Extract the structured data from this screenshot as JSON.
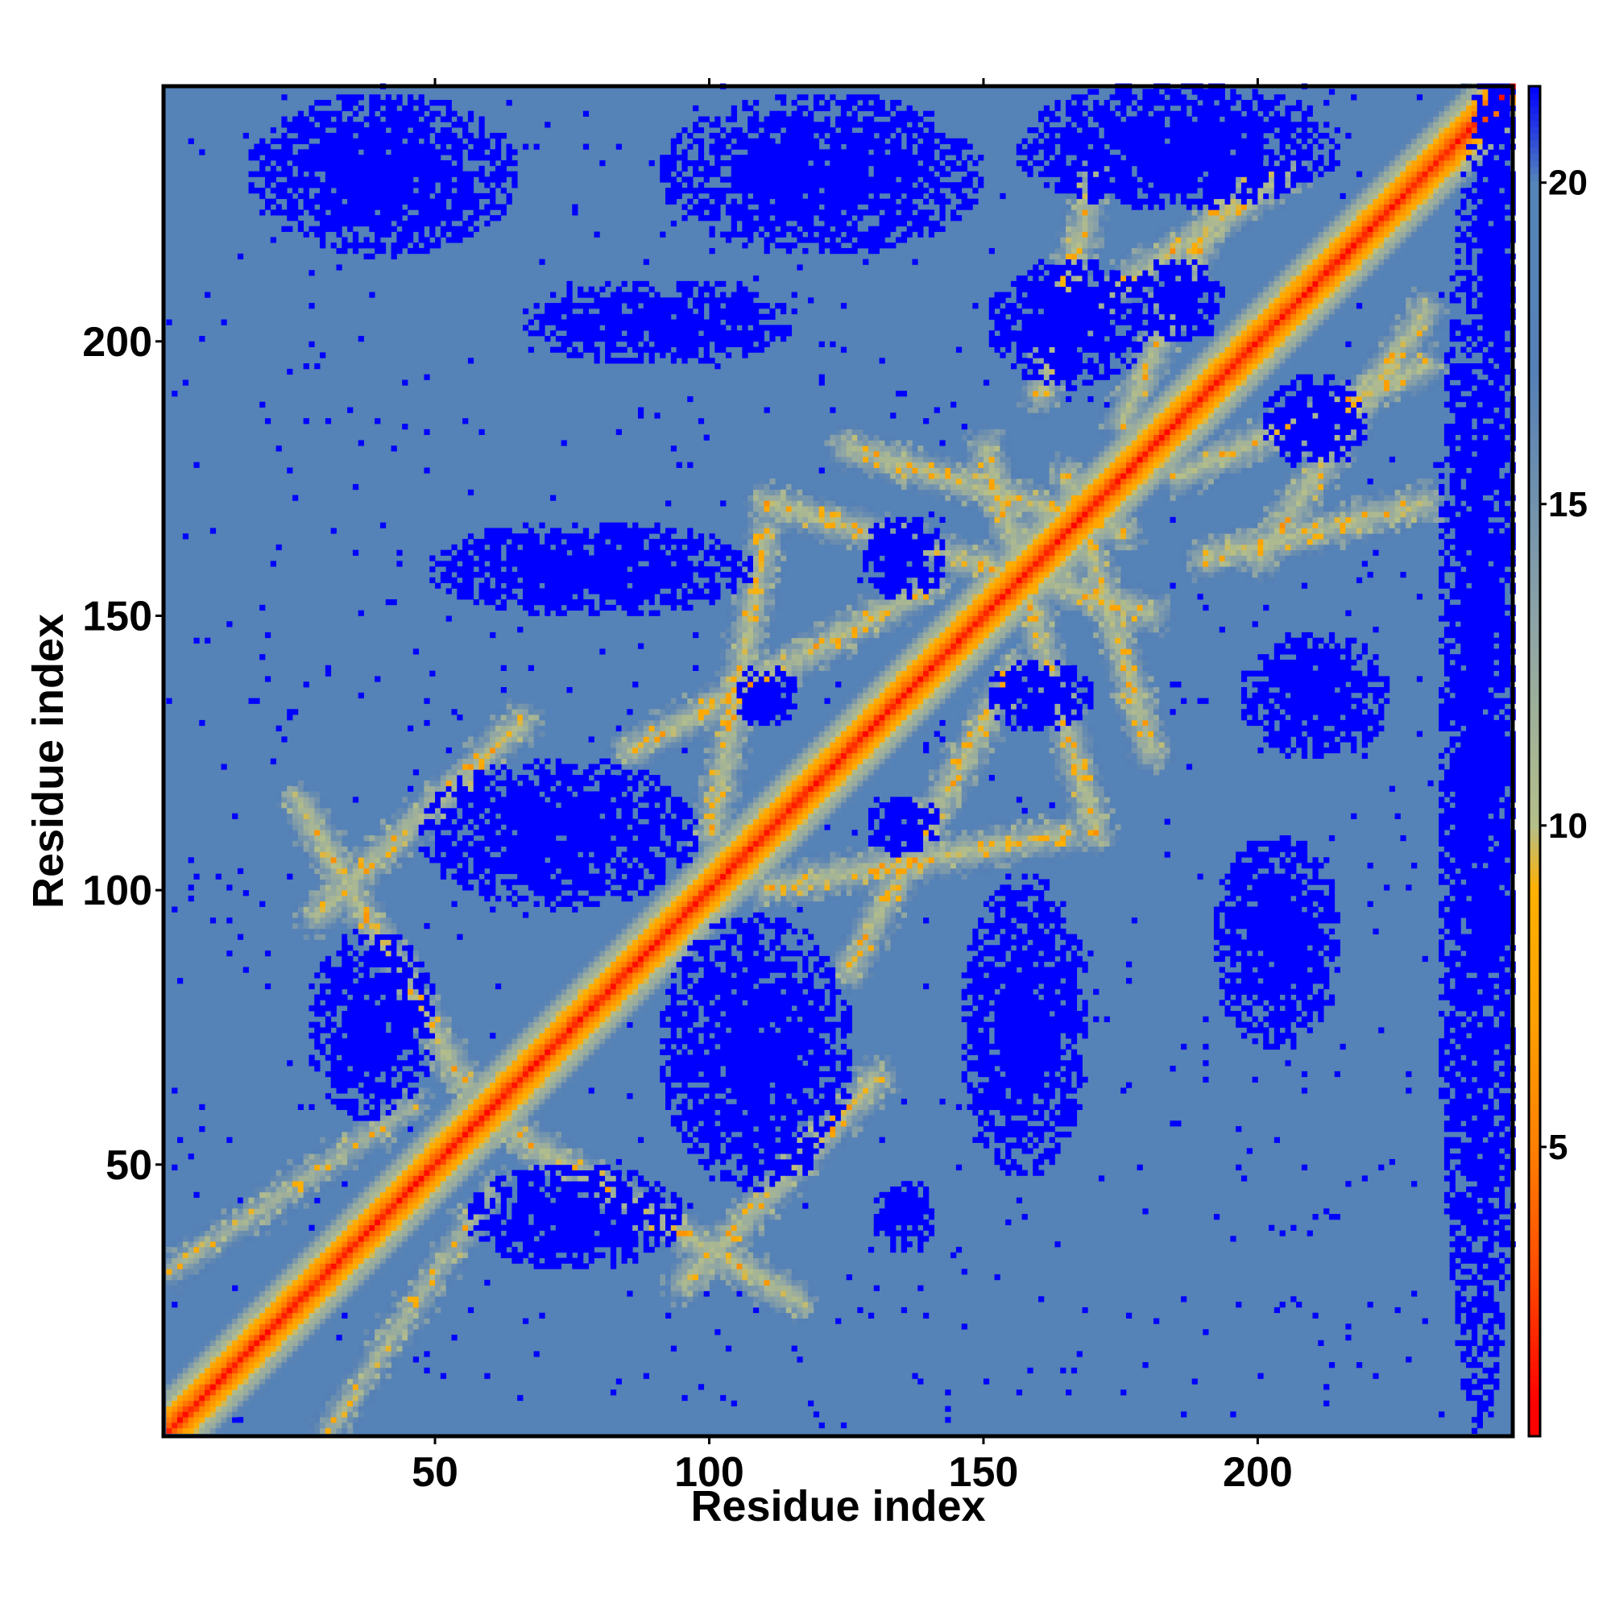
{
  "chart_data": {
    "type": "heatmap",
    "title": "",
    "xlabel": "Residue index",
    "ylabel": "Residue index",
    "n_residues": 246,
    "xlim": [
      1,
      246
    ],
    "ylim": [
      1,
      246
    ],
    "x_ticks": [
      50,
      100,
      150,
      200
    ],
    "y_ticks": [
      50,
      100,
      150,
      200
    ],
    "colorbar": {
      "range": [
        0.5,
        21.5
      ],
      "ticks": [
        5,
        10,
        15,
        20
      ],
      "colors": [
        {
          "value": 1,
          "color": "#ff0000"
        },
        {
          "value": 3,
          "color": "#ff4a00"
        },
        {
          "value": 5,
          "color": "#ff8000"
        },
        {
          "value": 7,
          "color": "#ffa000"
        },
        {
          "value": 9,
          "color": "#ffb000"
        },
        {
          "value": 10,
          "color": "#b5bf8a"
        },
        {
          "value": 13,
          "color": "#8fa5a5"
        },
        {
          "value": 17,
          "color": "#5580b6"
        },
        {
          "value": 20,
          "color": "#5585b8"
        },
        {
          "value": 21.5,
          "color": "#0000ff"
        }
      ]
    },
    "structure": {
      "diagonal": "contact distance near 0 along i = j, rising to ~10 within 4 residues",
      "background_value": 18,
      "secondary_bands": [
        {
          "from": [
            1,
            30
          ],
          "to": [
            45,
            60
          ],
          "value": 10
        },
        {
          "from": [
            28,
            95
          ],
          "to": [
            65,
            130
          ],
          "value": 9
        },
        {
          "from": [
            64,
            55
          ],
          "to": [
            115,
            25
          ],
          "value": 9
        },
        {
          "from": [
            85,
            125
          ],
          "to": [
            140,
            155
          ],
          "value": 9
        },
        {
          "from": [
            110,
            100
          ],
          "to": [
            165,
            110
          ],
          "value": 9
        },
        {
          "from": [
            110,
            170
          ],
          "to": [
            180,
            150
          ],
          "value": 9
        },
        {
          "from": [
            125,
            180
          ],
          "to": [
            175,
            165
          ],
          "value": 9
        },
        {
          "from": [
            160,
            200
          ],
          "to": [
            205,
            230
          ],
          "value": 9
        },
        {
          "from": [
            185,
            175
          ],
          "to": [
            230,
            195
          ],
          "value": 9
        },
        {
          "from": [
            190,
            160
          ],
          "to": [
            230,
            170
          ],
          "value": 9
        }
      ],
      "far_regions": [
        {
          "center": [
            90,
            203
          ],
          "size": [
            25,
            8
          ]
        },
        {
          "center": [
            165,
            203
          ],
          "size": [
            15,
            12
          ]
        },
        {
          "center": [
            185,
            207
          ],
          "size": [
            9,
            8
          ]
        },
        {
          "center": [
            210,
            185
          ],
          "size": [
            10,
            9
          ]
        },
        {
          "center": [
            78,
            158
          ],
          "size": [
            30,
            9
          ]
        },
        {
          "center": [
            135,
            160
          ],
          "size": [
            8,
            8
          ]
        },
        {
          "center": [
            160,
            135
          ],
          "size": [
            10,
            7
          ]
        },
        {
          "center": [
            210,
            135
          ],
          "size": [
            14,
            12
          ]
        },
        {
          "center": [
            110,
            135
          ],
          "size": [
            6,
            6
          ]
        },
        {
          "center": [
            135,
            111
          ],
          "size": [
            7,
            6
          ]
        },
        {
          "center": [
            72,
            110
          ],
          "size": [
            26,
            14
          ]
        },
        {
          "center": [
            38,
            75
          ],
          "size": [
            12,
            18
          ]
        },
        {
          "center": [
            108,
            70
          ],
          "size": [
            18,
            26
          ]
        },
        {
          "center": [
            157,
            75
          ],
          "size": [
            12,
            28
          ]
        },
        {
          "center": [
            203,
            90
          ],
          "size": [
            12,
            20
          ]
        },
        {
          "center": [
            75,
            40
          ],
          "size": [
            20,
            10
          ]
        },
        {
          "center": [
            135,
            40
          ],
          "size": [
            6,
            7
          ]
        },
        {
          "center": [
            120,
            230
          ],
          "size": [
            30,
            15
          ]
        },
        {
          "center": [
            40,
            230
          ],
          "size": [
            25,
            15
          ]
        },
        {
          "center": [
            185,
            235
          ],
          "size": [
            30,
            12
          ]
        },
        {
          "center": [
            240,
            120
          ],
          "size": [
            8,
            120
          ]
        },
        {
          "center": [
            243,
            215
          ],
          "size": [
            5,
            50
          ]
        }
      ]
    }
  }
}
